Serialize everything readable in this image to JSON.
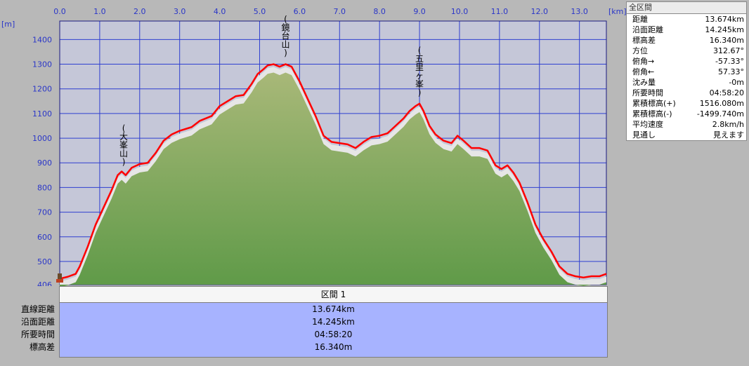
{
  "chart_data": {
    "type": "area",
    "xlabel": "[km]",
    "ylabel": "[m]",
    "xlim": [
      0,
      13.674
    ],
    "ylim": [
      406,
      1475
    ],
    "xticks": [
      "0.0",
      "1.0",
      "2.0",
      "3.0",
      "4.0",
      "5.0",
      "6.0",
      "7.0",
      "8.0",
      "9.0",
      "10.0",
      "11.0",
      "12.0",
      "13.0"
    ],
    "yticks": [
      "406",
      "500",
      "600",
      "700",
      "800",
      "900",
      "1000",
      "1100",
      "1200",
      "1300",
      "1400"
    ],
    "grid": true,
    "series": [
      {
        "x": [
          0,
          0.2,
          0.4,
          0.5,
          0.7,
          0.9,
          1.1,
          1.3,
          1.45,
          1.55,
          1.65,
          1.8,
          2.0,
          2.2,
          2.4,
          2.6,
          2.8,
          3.0,
          3.3,
          3.5,
          3.8,
          4.0,
          4.2,
          4.4,
          4.6,
          4.8,
          4.95,
          5.1,
          5.2,
          5.35,
          5.5,
          5.65,
          5.8,
          6.0,
          6.2,
          6.4,
          6.6,
          6.8,
          7.0,
          7.2,
          7.4,
          7.6,
          7.8,
          8.0,
          8.2,
          8.4,
          8.6,
          8.75,
          8.9,
          9.0,
          9.1,
          9.25,
          9.4,
          9.6,
          9.8,
          9.95,
          10.1,
          10.3,
          10.5,
          10.7,
          10.9,
          11.05,
          11.2,
          11.35,
          11.5,
          11.7,
          11.9,
          12.1,
          12.3,
          12.5,
          12.7,
          12.9,
          13.1,
          13.3,
          13.5,
          13.674
        ],
        "values": [
          430,
          438,
          450,
          480,
          560,
          650,
          720,
          790,
          850,
          865,
          850,
          880,
          895,
          900,
          940,
          990,
          1015,
          1030,
          1045,
          1070,
          1090,
          1130,
          1150,
          1170,
          1175,
          1220,
          1260,
          1280,
          1295,
          1300,
          1290,
          1300,
          1290,
          1230,
          1160,
          1090,
          1010,
          985,
          980,
          975,
          960,
          985,
          1005,
          1010,
          1020,
          1050,
          1080,
          1110,
          1130,
          1140,
          1110,
          1050,
          1015,
          990,
          980,
          1010,
          990,
          960,
          960,
          950,
          890,
          875,
          890,
          860,
          820,
          740,
          650,
          590,
          540,
          480,
          450,
          440,
          435,
          440,
          440,
          450
        ]
      }
    ],
    "peaks": [
      {
        "label": "大峯山",
        "x": 1.6
      },
      {
        "label": "鏡台山",
        "x": 5.65
      },
      {
        "label": "五里ヶ峯",
        "x": 9.0
      }
    ]
  },
  "stats": {
    "title": "全区間",
    "rows": [
      {
        "label": "距離",
        "value": "13.674km"
      },
      {
        "label": "沿面距離",
        "value": "14.245km"
      },
      {
        "label": "標高差",
        "value": "16.340m"
      },
      {
        "label": "方位",
        "value": "312.67°"
      },
      {
        "label": "俯角→",
        "value": "-57.33°"
      },
      {
        "label": "俯角←",
        "value": "57.33°"
      },
      {
        "label": "沈み量",
        "value": "-0m"
      },
      {
        "label": "所要時間",
        "value": "04:58:20"
      },
      {
        "label": "累積標高(+)",
        "value": "1516.080m"
      },
      {
        "label": "累積標高(-)",
        "value": "-1499.740m"
      },
      {
        "label": "平均速度",
        "value": "2.8km/h"
      },
      {
        "label": "見通し",
        "value": "見えます"
      }
    ]
  },
  "section": {
    "header": "区間 1",
    "rows": [
      {
        "label": "直線距離",
        "value": "13.674km"
      },
      {
        "label": "沿面距離",
        "value": "14.245km"
      },
      {
        "label": "所要時間",
        "value": "04:58:20"
      },
      {
        "label": "標高差",
        "value": "16.340m"
      }
    ]
  },
  "colors": {
    "plot_bg": "#c5c7d8",
    "grid": "#2f3fd0",
    "line": "#ff0000",
    "fill_top": "#a8b878",
    "fill_bottom": "#5f9a48",
    "fill_shadow": "#e6e6e6",
    "axis_text": "#2a36c8"
  }
}
